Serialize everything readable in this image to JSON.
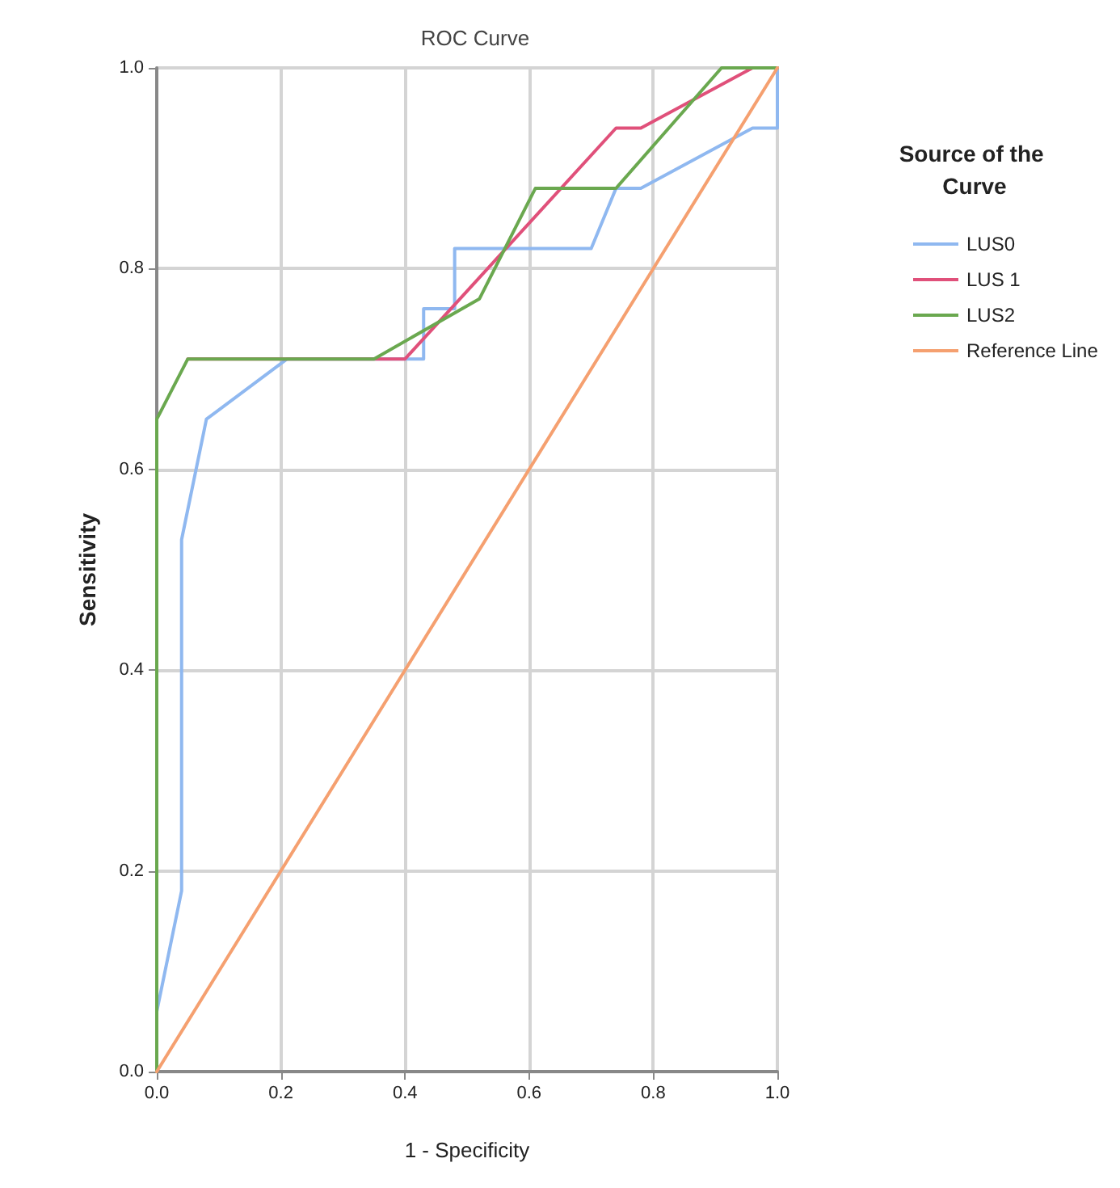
{
  "chart_data": {
    "type": "line",
    "title": "ROC Curve",
    "xlabel": "1 - Specificity",
    "ylabel": "Sensitivity",
    "legend_title": "Source of the Curve",
    "legend": "right",
    "grid": true,
    "marker": "none",
    "line_style": "solid",
    "xlim": [
      0,
      1
    ],
    "ylim": [
      0,
      1
    ],
    "xticks": [
      {
        "value": 0,
        "label": "0.0"
      },
      {
        "value": 0.2,
        "label": "0.2"
      },
      {
        "value": 0.4,
        "label": "0.4"
      },
      {
        "value": 0.6,
        "label": "0.6"
      },
      {
        "value": 0.8,
        "label": "0.8"
      },
      {
        "value": 1,
        "label": "1.0"
      }
    ],
    "yticks": [
      {
        "value": 0,
        "label": "0.0"
      },
      {
        "value": 0.2,
        "label": "0.2"
      },
      {
        "value": 0.4,
        "label": "0.4"
      },
      {
        "value": 0.6,
        "label": "0.6"
      },
      {
        "value": 0.8,
        "label": "0.8"
      },
      {
        "value": 1,
        "label": "1.0"
      }
    ],
    "series": [
      {
        "name": "LUS0",
        "color": "#8fb8f0",
        "x": [
          0,
          0.04,
          0.04,
          0.08,
          0.21,
          0.43,
          0.43,
          0.48,
          0.48,
          0.7,
          0.74,
          0.78,
          0.96,
          1,
          1
        ],
        "values": [
          0.06,
          0.18,
          0.53,
          0.65,
          0.71,
          0.71,
          0.76,
          0.76,
          0.82,
          0.82,
          0.88,
          0.88,
          0.94,
          0.94,
          1
        ]
      },
      {
        "name": "LUS 1",
        "color": "#e0507a",
        "x": [
          0.05,
          0.35,
          0.4,
          0.74,
          0.78,
          0.96,
          1
        ],
        "values": [
          0.71,
          0.71,
          0.71,
          0.94,
          0.94,
          1,
          1
        ]
      },
      {
        "name": "LUS2",
        "color": "#6aa84f",
        "x": [
          0,
          0,
          0.05,
          0.35,
          0.52,
          0.61,
          0.74,
          0.91,
          1
        ],
        "values": [
          0,
          0.65,
          0.71,
          0.71,
          0.77,
          0.88,
          0.88,
          1,
          1
        ]
      },
      {
        "name": "Reference Line",
        "color": "#f5a070",
        "x": [
          0,
          1
        ],
        "values": [
          0,
          1
        ]
      }
    ]
  }
}
